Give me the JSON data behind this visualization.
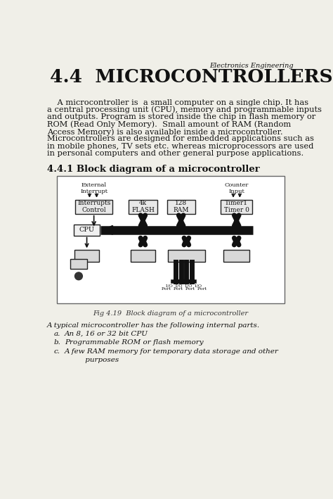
{
  "header_italic": "Electronics Engineering",
  "title": "4.4  MICROCONTROLLERS",
  "para1_lines": [
    "    A microcontroller is  a small computer on a single chip. It has",
    "a central processing unit (CPU), memory and programmable inputs",
    "and outputs. Program is stored inside the chip in flash memory or",
    "ROM (Read Only Memory).  Small amount of RAM (Random",
    "Access Memory) is also available inside a microcontroller.",
    "Microcontrollers are designed for embedded applications such as",
    "in mobile phones, TV sets etc. whereas microprocessors are used",
    "in personal computers and other general purpose applications."
  ],
  "section_title": "4.4.1 Block diagram of a microcontroller",
  "fig_caption": "Fig 4.19  Block diagram of a microcontroller",
  "bottom_para": "A typical microcontroller has the following internal parts.",
  "list_items": [
    [
      "a.",
      "An 8, 16 or 32 bit CPU"
    ],
    [
      "b.",
      "Programmable ROM or flash memory"
    ],
    [
      "c.",
      "A few RAM memory for temporary data storage and other\n         purposes"
    ]
  ],
  "bg_color": "#f0efe8",
  "text_color": "#111111",
  "diagram_bg": "#ffffff"
}
